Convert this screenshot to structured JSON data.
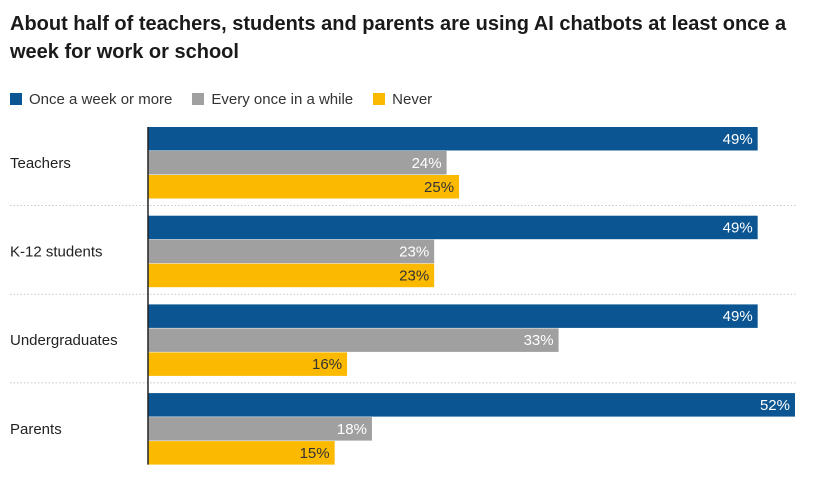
{
  "chart_data": {
    "type": "bar",
    "orientation": "horizontal",
    "title": "About half of teachers, students and parents are using AI chatbots at least once a week for work or school",
    "categories": [
      "Teachers",
      "K-12 students",
      "Undergraduates",
      "Parents"
    ],
    "series": [
      {
        "name": "Once a week or more",
        "color": "#0a5592",
        "values": [
          49,
          49,
          49,
          52
        ]
      },
      {
        "name": "Every once in a while",
        "color": "#a0a0a0",
        "values": [
          24,
          23,
          33,
          18
        ]
      },
      {
        "name": "Never",
        "color": "#fbb900",
        "values": [
          25,
          23,
          16,
          15
        ]
      }
    ],
    "value_suffix": "%",
    "xlim": [
      0,
      52
    ],
    "legend_position": "top-left",
    "grid": false
  }
}
